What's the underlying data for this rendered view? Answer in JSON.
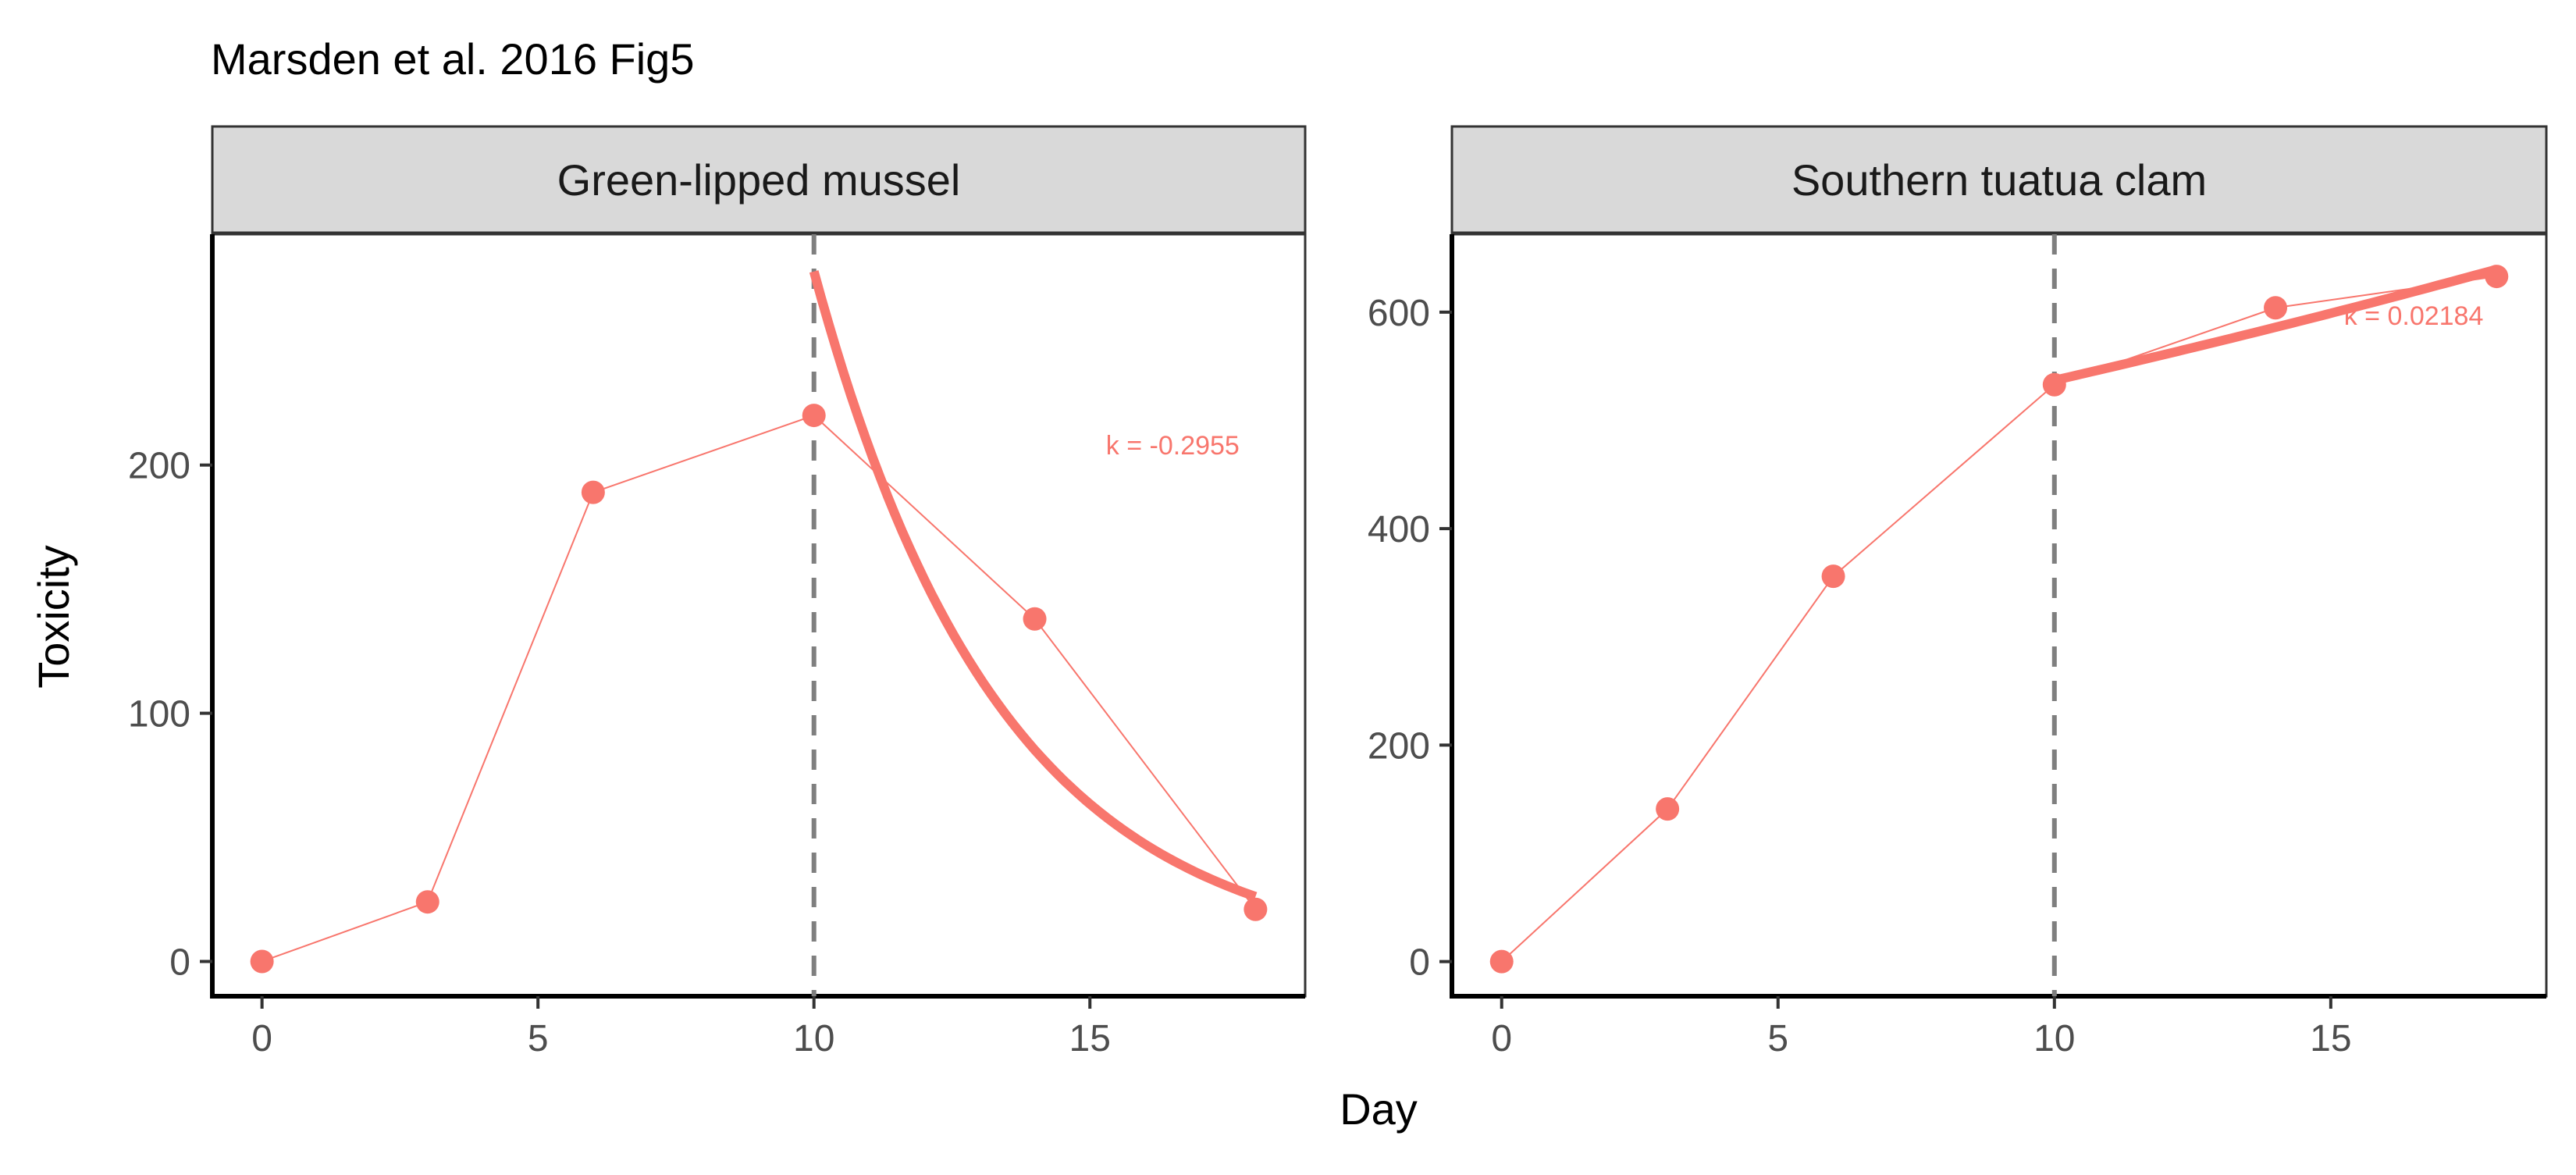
{
  "colors": {
    "series": "#F8766D",
    "strip_fill": "#D9D9D9",
    "strip_border": "#333333",
    "axis": "#000000",
    "vline": "#7F7F7F",
    "tick_text": "#4D4D4D"
  },
  "chart_data": {
    "type": "line",
    "title": "Marsden et al. 2016 Fig5",
    "xlabel": "Day",
    "ylabel": "Toxicity",
    "grid": false,
    "panels": [
      {
        "label": "Green-lipped mussel",
        "xlim": [
          -0.9,
          18.9
        ],
        "ylim": [
          -14,
          293
        ],
        "xticks": [
          0,
          5,
          10,
          15
        ],
        "yticks": [
          0,
          100,
          200
        ],
        "vline_x": 10,
        "points": [
          {
            "x": 0,
            "y": 0
          },
          {
            "x": 3,
            "y": 24
          },
          {
            "x": 6,
            "y": 189
          },
          {
            "x": 10,
            "y": 220
          },
          {
            "x": 14,
            "y": 138
          },
          {
            "x": 18,
            "y": 21
          }
        ],
        "fit": {
          "x0": 10,
          "x1": 18,
          "y0": 278,
          "k": -0.2955
        },
        "annotation": {
          "text": "k = -0.2955",
          "x": 16.5,
          "y": 208
        }
      },
      {
        "label": "Southern tuatua clam",
        "xlim": [
          -0.9,
          18.9
        ],
        "ylim": [
          -32,
          672
        ],
        "xticks": [
          0,
          5,
          10,
          15
        ],
        "yticks": [
          0,
          200,
          400,
          600
        ],
        "vline_x": 10,
        "points": [
          {
            "x": 0,
            "y": 0
          },
          {
            "x": 3,
            "y": 141
          },
          {
            "x": 6,
            "y": 356
          },
          {
            "x": 10,
            "y": 533
          },
          {
            "x": 14,
            "y": 604
          },
          {
            "x": 18,
            "y": 633
          }
        ],
        "fit": {
          "x0": 10,
          "x1": 18,
          "y0": 537,
          "k": 0.02184
        },
        "annotation": {
          "text": "k = 0.02184",
          "x": 16.5,
          "y": 597
        }
      }
    ]
  }
}
